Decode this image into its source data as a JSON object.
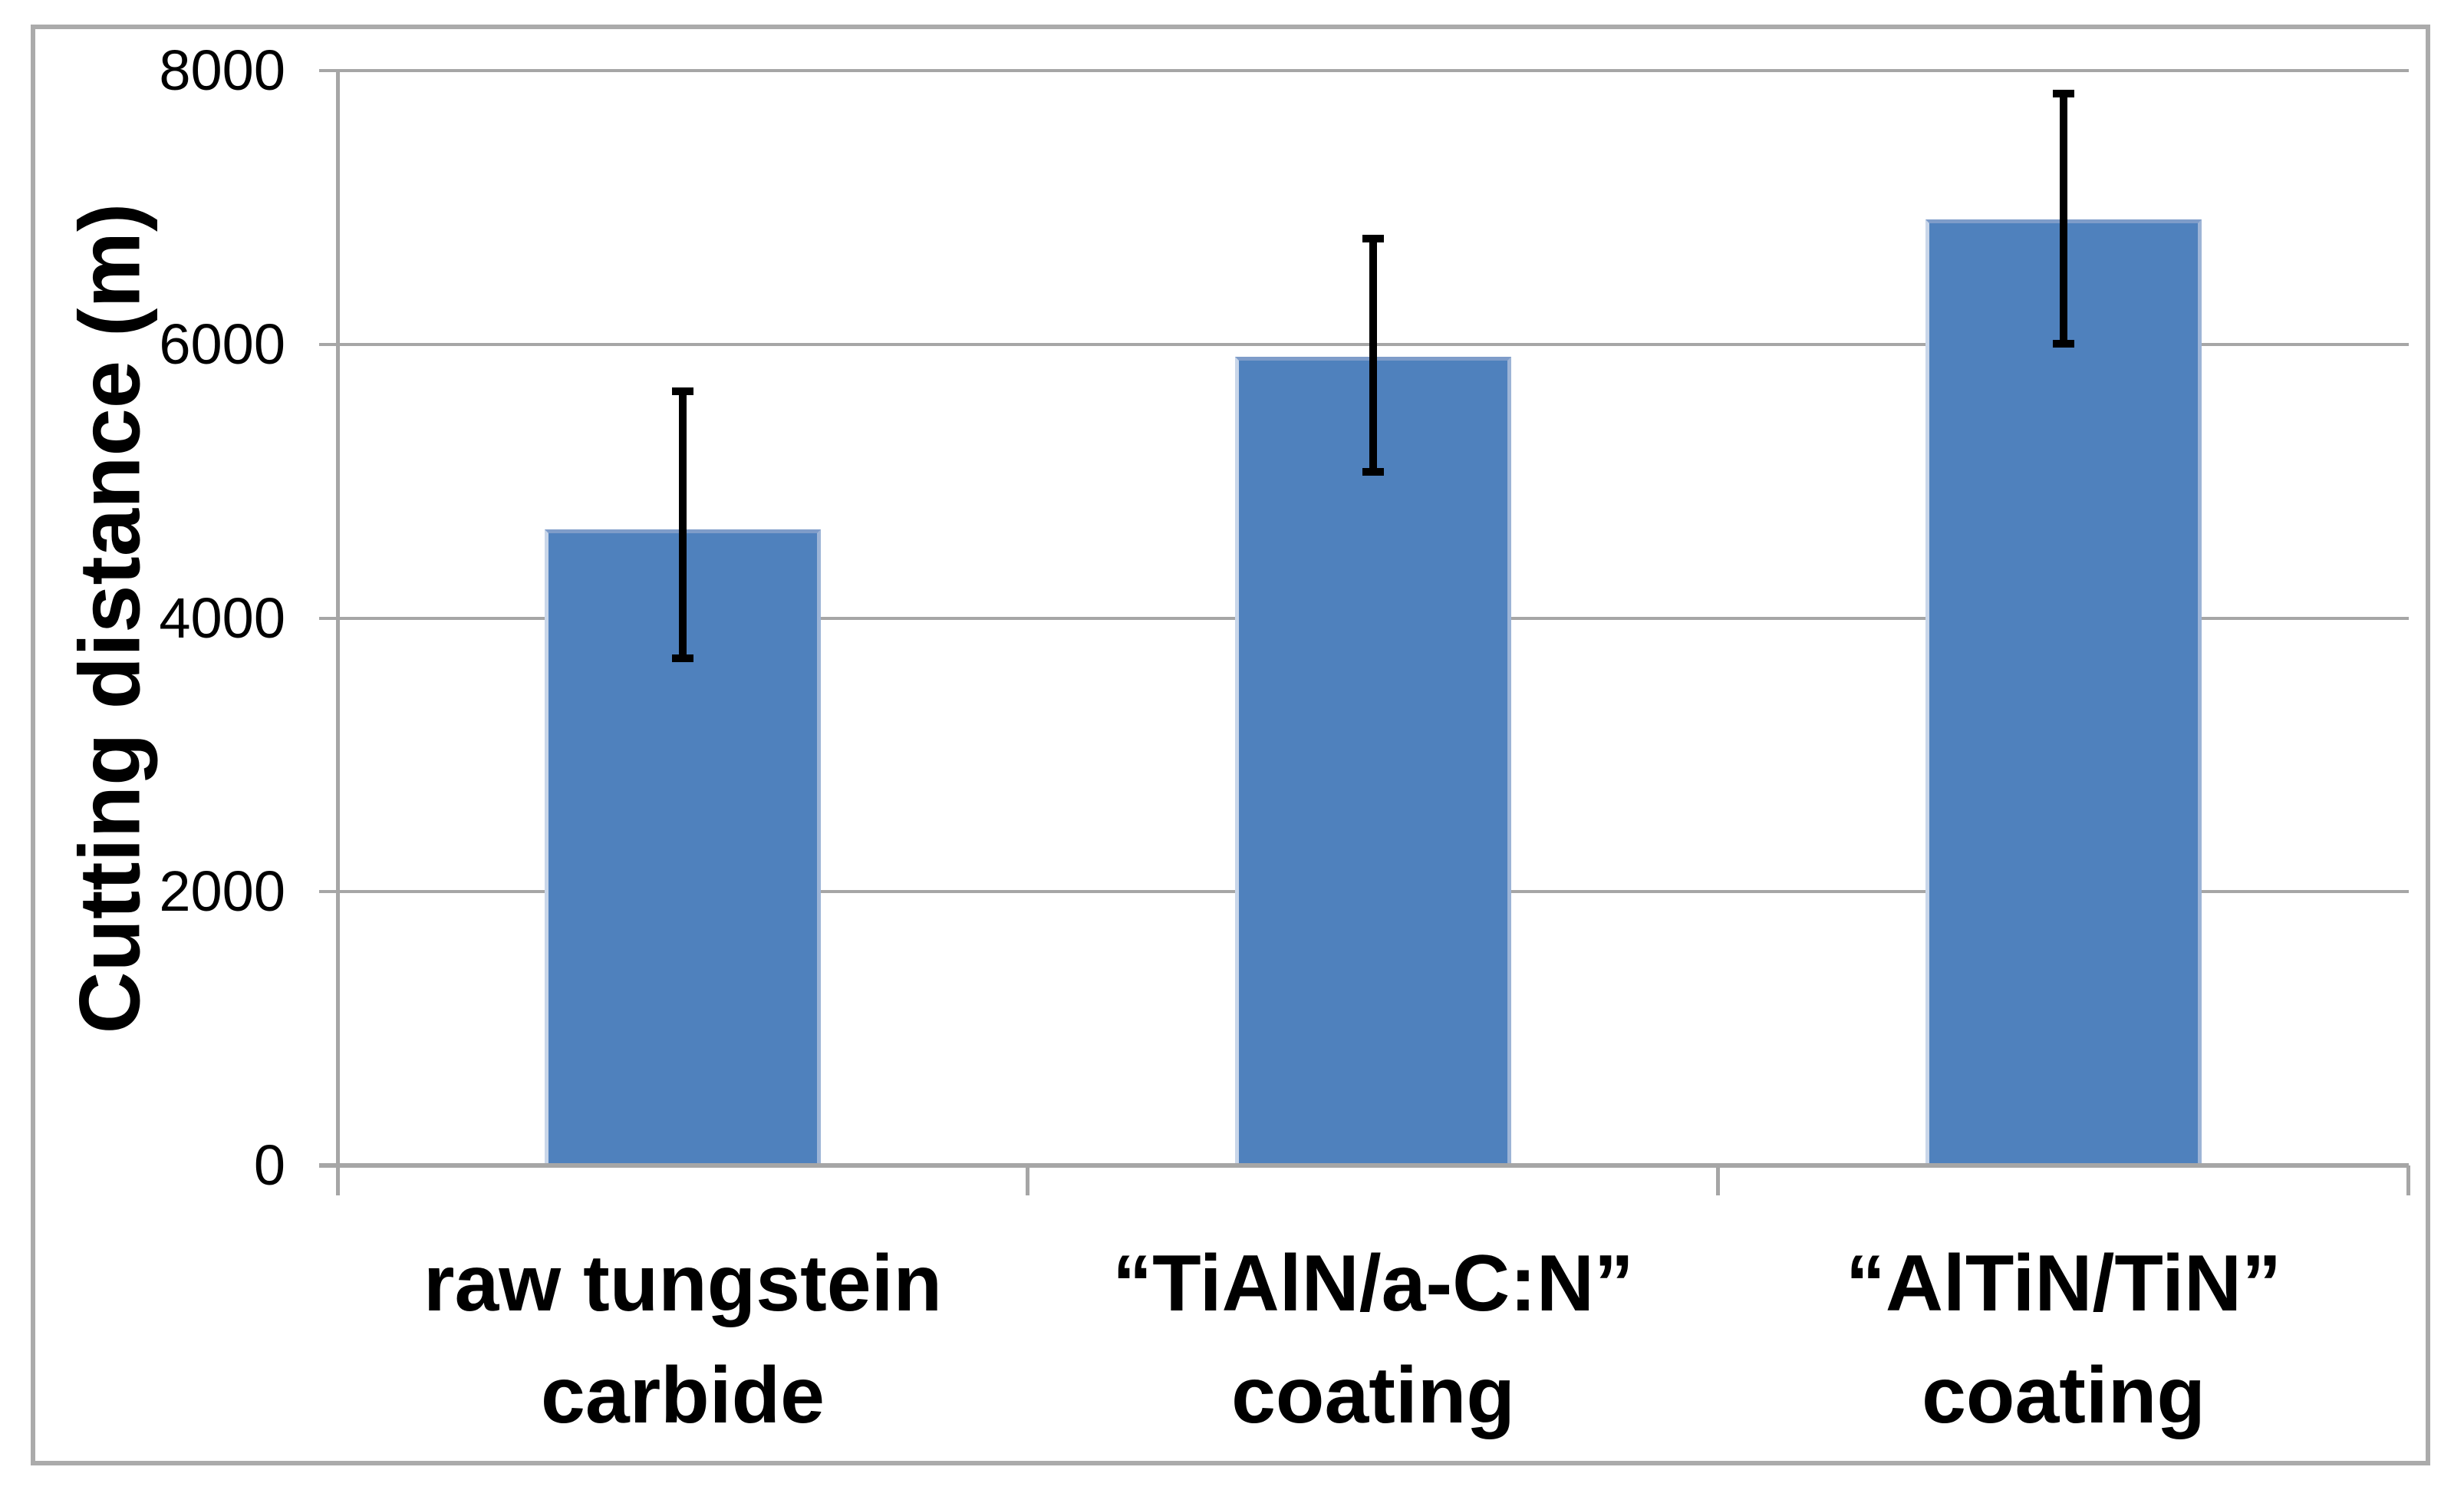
{
  "chart_data": {
    "type": "bar",
    "title": "",
    "xlabel": "",
    "ylabel": "Cutting distance (m)",
    "ylim": [
      0,
      8000
    ],
    "yticks": [
      0,
      2000,
      4000,
      6000,
      8000
    ],
    "grid": "horizontal",
    "legend": "none",
    "categories": [
      "raw tungstein\ncarbide",
      "“TiAlN/a-C:N”\ncoating",
      "“AlTiN/TiN”\ncoating"
    ],
    "values": [
      4650,
      5910,
      6910
    ],
    "error_bars": {
      "upper": [
        5660,
        6780,
        7840
      ],
      "lower": [
        3700,
        5060,
        6000
      ]
    },
    "colors": {
      "bar_fill": "#4F81BD",
      "bar_edge_light": "#C9D6E9",
      "bar_edge_top": "#7E9CC9",
      "error_bar": "#000000",
      "gridline": "#A6A6A6",
      "axis": "#A6A6A6",
      "figure_border": "#ABABAB",
      "text": "#000000"
    }
  }
}
